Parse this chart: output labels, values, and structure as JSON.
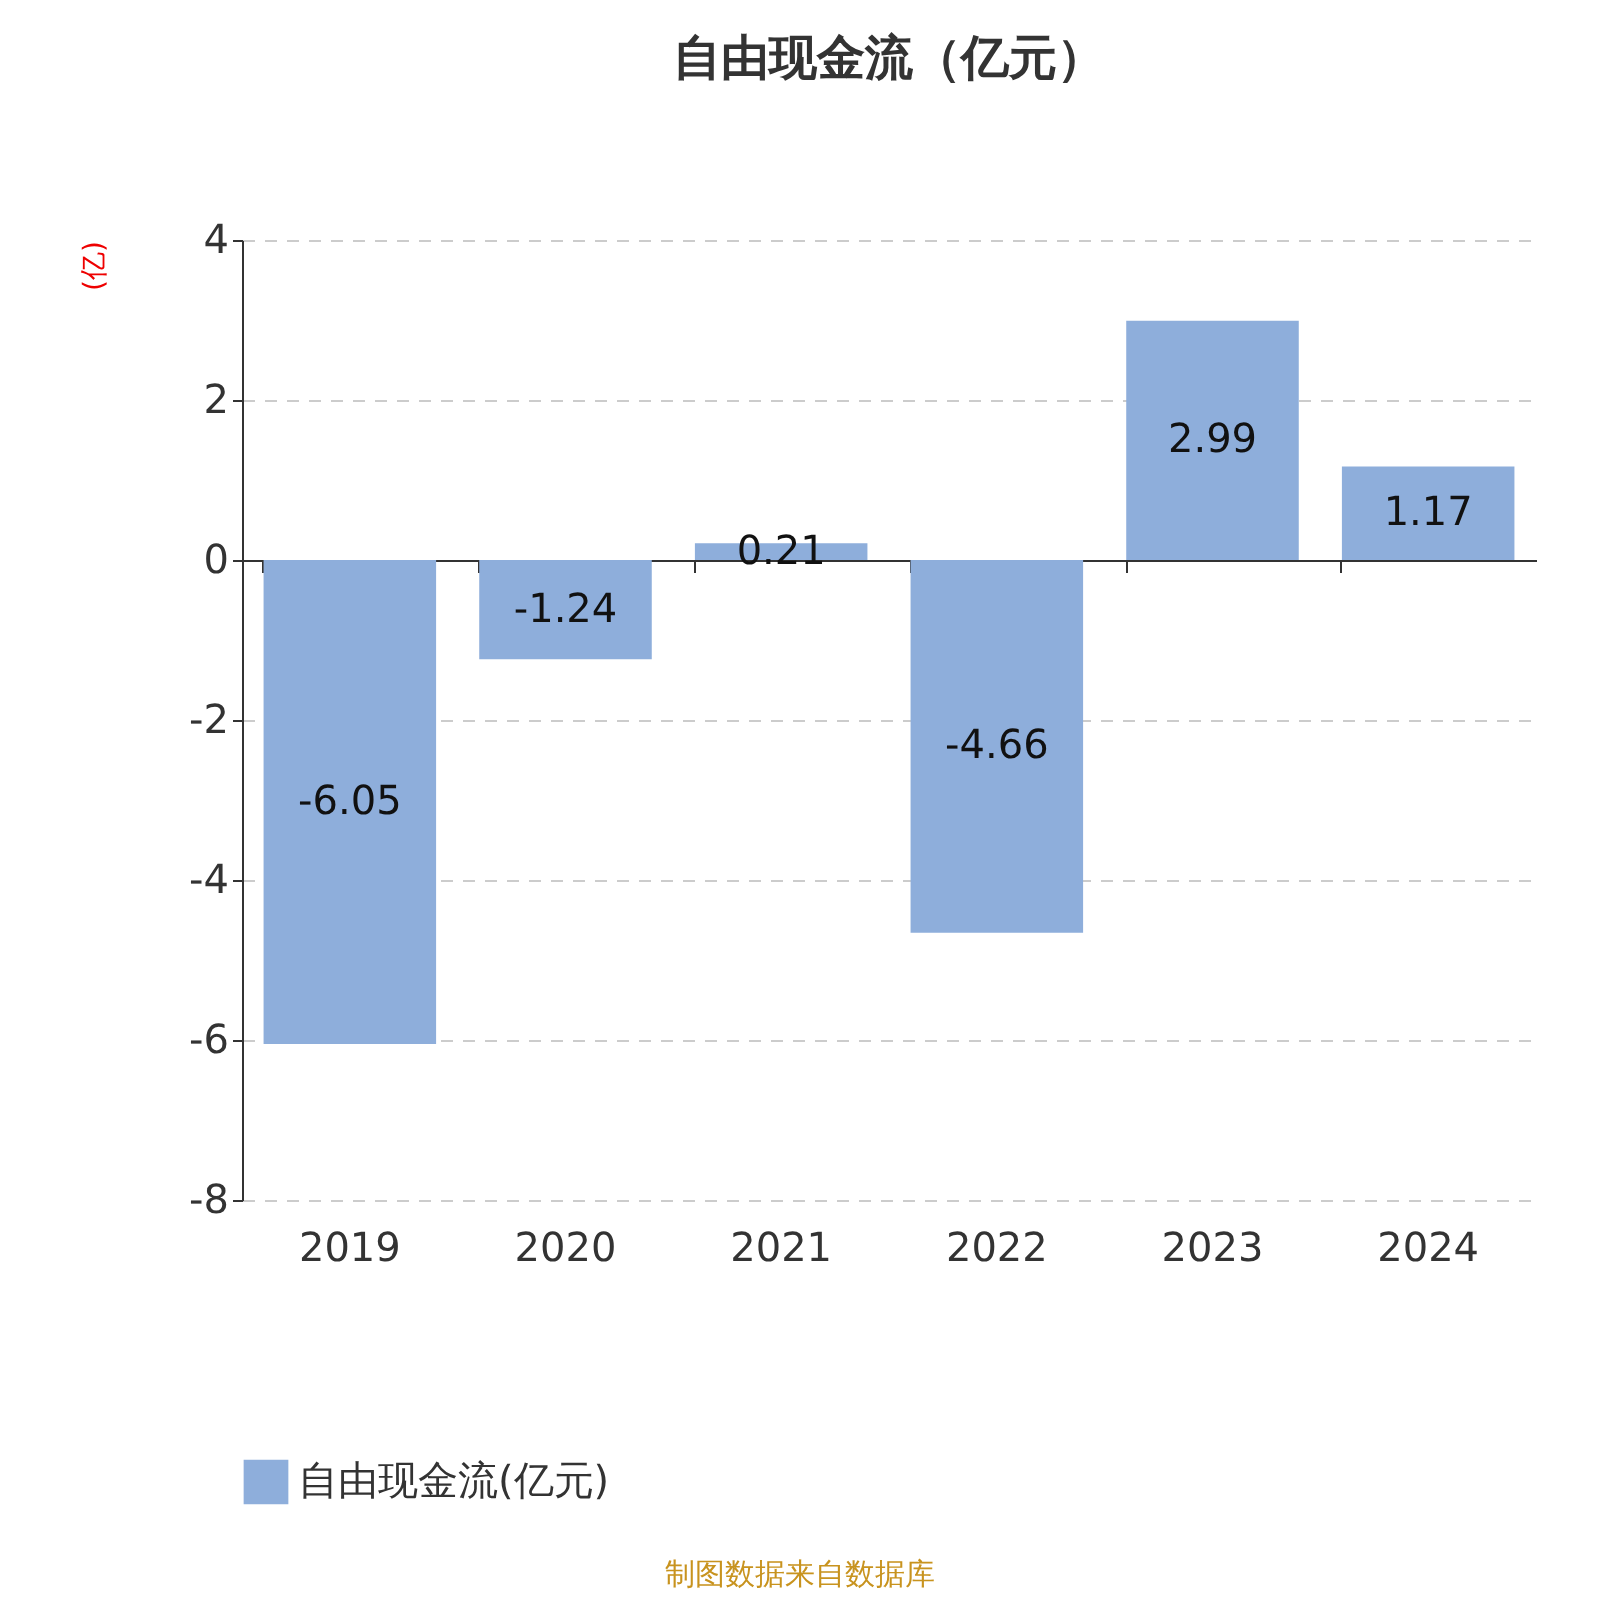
{
  "chart_data": {
    "type": "bar",
    "title": "自由现金流（亿元）",
    "ylabel": "(亿)",
    "categories": [
      "2019",
      "2020",
      "2021",
      "2022",
      "2023",
      "2024"
    ],
    "series": [
      {
        "name": "自由现金流(亿元)",
        "color": "#8eaedb",
        "values": [
          -6.05,
          -1.24,
          0.21,
          -4.66,
          2.99,
          1.17
        ]
      }
    ],
    "ylim": [
      -8,
      4
    ],
    "yticks": [
      -8,
      -6,
      -4,
      -2,
      0,
      2,
      4
    ],
    "grid": "y",
    "legend": "bottom",
    "data_labels": true,
    "annotations": [
      "制图数据来自数据库"
    ]
  }
}
